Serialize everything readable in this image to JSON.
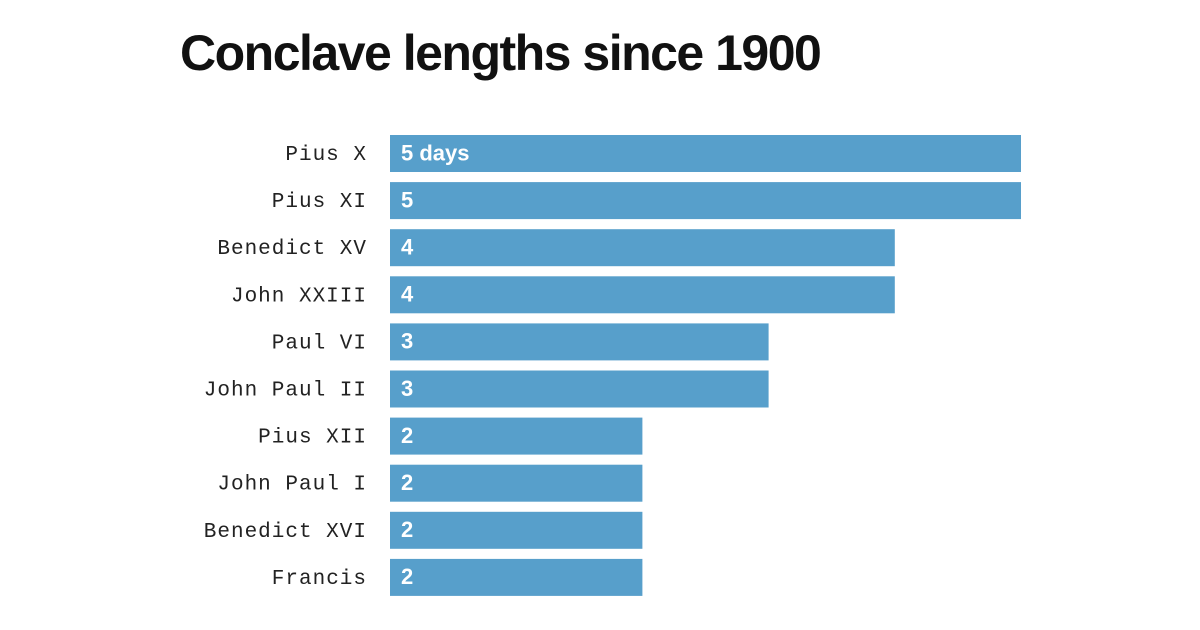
{
  "chart_data": {
    "type": "bar",
    "orientation": "horizontal",
    "title": "Conclave lengths since 1900",
    "categories": [
      "Pius X",
      "Pius XI",
      "Benedict XV",
      "John XXIII",
      "Paul VI",
      "John Paul II",
      "Pius XII",
      "John Paul I",
      "Benedict XVI",
      "Francis"
    ],
    "values": [
      5,
      5,
      4,
      4,
      3,
      3,
      2,
      2,
      2,
      2
    ],
    "value_labels": [
      "5 days",
      "5",
      "4",
      "4",
      "3",
      "3",
      "2",
      "2",
      "2",
      "2"
    ],
    "color": "#579fcb"
  }
}
